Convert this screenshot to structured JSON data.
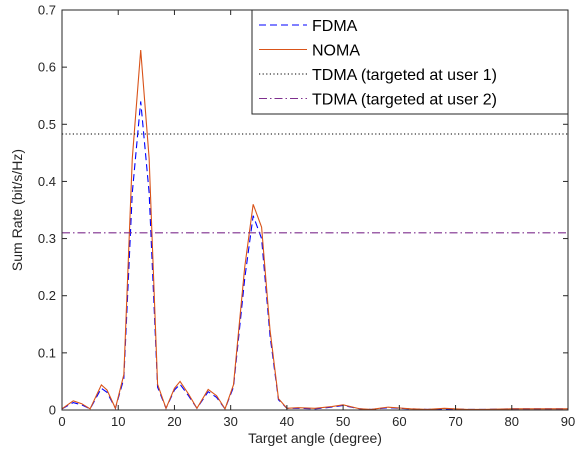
{
  "chart_data": {
    "type": "line",
    "title": "",
    "xlabel": "Target angle (degree)",
    "ylabel": "Sum Rate (bit/s/Hz)",
    "xlim": [
      0,
      90
    ],
    "ylim": [
      0,
      0.7
    ],
    "xticks": [
      0,
      10,
      20,
      30,
      40,
      50,
      60,
      70,
      80,
      90
    ],
    "yticks": [
      0,
      0.1,
      0.2,
      0.3,
      0.4,
      0.5,
      0.6,
      0.7
    ],
    "xtick_labels": [
      "0",
      "10",
      "20",
      "30",
      "40",
      "50",
      "60",
      "70",
      "80",
      "90"
    ],
    "ytick_labels": [
      "0",
      "0.1",
      "0.2",
      "0.3",
      "0.4",
      "0.5",
      "0.6",
      "0.7"
    ],
    "grid": false,
    "legend_position": "top-right",
    "series": [
      {
        "name": "FDMA",
        "color": "#0000ff",
        "style": "dashed",
        "x": [
          0,
          2,
          3.5,
          5,
          7,
          8,
          9.5,
          11,
          12.5,
          14,
          15.5,
          17,
          18.5,
          20,
          21,
          22.5,
          24,
          26,
          27.5,
          29,
          30.5,
          32.5,
          34,
          35.5,
          37,
          38.5,
          40,
          42,
          45,
          48,
          50,
          53,
          55,
          58,
          62,
          65,
          68,
          72,
          75,
          80,
          85,
          90
        ],
        "y": [
          0.002,
          0.013,
          0.009,
          0.002,
          0.038,
          0.031,
          0.003,
          0.055,
          0.38,
          0.54,
          0.38,
          0.04,
          0.003,
          0.035,
          0.045,
          0.025,
          0.003,
          0.032,
          0.022,
          0.002,
          0.04,
          0.23,
          0.34,
          0.3,
          0.13,
          0.018,
          0.003,
          0.003,
          0.002,
          0.005,
          0.008,
          0.002,
          0.001,
          0.004,
          0.002,
          0.001,
          0.002,
          0.001,
          0.001,
          0.002,
          0.002,
          0.002
        ]
      },
      {
        "name": "NOMA",
        "color": "#d95319",
        "style": "solid",
        "x": [
          0,
          2,
          3.5,
          5,
          7,
          8,
          9.5,
          11,
          12.5,
          14,
          15.5,
          17,
          18.5,
          20,
          21,
          22.5,
          24,
          26,
          27.5,
          29,
          30.5,
          32.5,
          34,
          35.5,
          37,
          38.5,
          40,
          42,
          45,
          48,
          50,
          53,
          55,
          58,
          62,
          65,
          68,
          72,
          75,
          80,
          85,
          90
        ],
        "y": [
          0.002,
          0.016,
          0.011,
          0.002,
          0.044,
          0.035,
          0.003,
          0.062,
          0.44,
          0.63,
          0.44,
          0.045,
          0.003,
          0.038,
          0.05,
          0.028,
          0.003,
          0.036,
          0.025,
          0.002,
          0.044,
          0.25,
          0.36,
          0.32,
          0.14,
          0.02,
          0.003,
          0.004,
          0.003,
          0.006,
          0.009,
          0.002,
          0.001,
          0.005,
          0.002,
          0.001,
          0.003,
          0.001,
          0.001,
          0.002,
          0.002,
          0.002
        ]
      },
      {
        "name": "TDMA (targeted at user 1)",
        "color": "#000000",
        "style": "dotted",
        "x": [
          0,
          90
        ],
        "y": [
          0.483,
          0.483
        ]
      },
      {
        "name": "TDMA (targeted at user 2)",
        "color": "#7e2f8e",
        "style": "dashdot",
        "x": [
          0,
          90
        ],
        "y": [
          0.31,
          0.31
        ]
      }
    ]
  }
}
